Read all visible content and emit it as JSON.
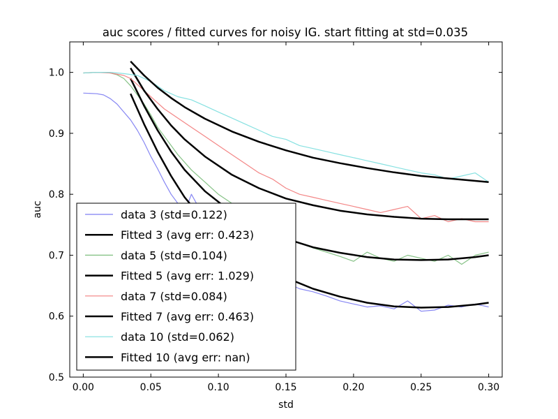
{
  "chart_data": {
    "type": "line",
    "title": "auc scores / fitted curves for noisy IG. start fitting at std=0.035",
    "xlabel": "std",
    "ylabel": "auc",
    "xlim": [
      -0.01,
      0.31
    ],
    "ylim": [
      0.5,
      1.05
    ],
    "x_ticks": [
      0.0,
      0.05,
      0.1,
      0.15,
      0.2,
      0.25,
      0.3
    ],
    "x_tick_labels": [
      "0.00",
      "0.05",
      "0.10",
      "0.15",
      "0.20",
      "0.25",
      "0.30"
    ],
    "y_ticks": [
      0.5,
      0.6,
      0.7,
      0.8,
      0.9,
      1.0
    ],
    "y_tick_labels": [
      "0.5",
      "0.6",
      "0.7",
      "0.8",
      "0.9",
      "1.0"
    ],
    "grid": false,
    "legend_position": "lower-left",
    "series": [
      {
        "name": "data 3 (std=0.122)",
        "kind": "data",
        "color": "#7f7ff2",
        "points": [
          [
            0.0,
            0.966
          ],
          [
            0.01,
            0.965
          ],
          [
            0.015,
            0.963
          ],
          [
            0.02,
            0.957
          ],
          [
            0.025,
            0.948
          ],
          [
            0.03,
            0.935
          ],
          [
            0.035,
            0.922
          ],
          [
            0.04,
            0.905
          ],
          [
            0.045,
            0.885
          ],
          [
            0.05,
            0.862
          ],
          [
            0.055,
            0.842
          ],
          [
            0.06,
            0.82
          ],
          [
            0.065,
            0.8
          ],
          [
            0.07,
            0.785
          ],
          [
            0.075,
            0.77
          ],
          [
            0.08,
            0.8
          ],
          [
            0.085,
            0.78
          ],
          [
            0.09,
            0.765
          ],
          [
            0.1,
            0.74
          ],
          [
            0.11,
            0.72
          ],
          [
            0.12,
            0.7
          ],
          [
            0.13,
            0.685
          ],
          [
            0.14,
            0.67
          ],
          [
            0.15,
            0.655
          ],
          [
            0.16,
            0.645
          ],
          [
            0.17,
            0.64
          ],
          [
            0.18,
            0.633
          ],
          [
            0.19,
            0.625
          ],
          [
            0.2,
            0.62
          ],
          [
            0.21,
            0.615
          ],
          [
            0.22,
            0.617
          ],
          [
            0.23,
            0.612
          ],
          [
            0.24,
            0.625
          ],
          [
            0.25,
            0.608
          ],
          [
            0.26,
            0.61
          ],
          [
            0.27,
            0.618
          ],
          [
            0.28,
            0.615
          ],
          [
            0.29,
            0.62
          ],
          [
            0.3,
            0.615
          ]
        ]
      },
      {
        "name": "Fitted 3 (avg err: 0.423)",
        "kind": "fit",
        "color": "#000000",
        "points": [
          [
            0.035,
            0.965
          ],
          [
            0.045,
            0.915
          ],
          [
            0.055,
            0.87
          ],
          [
            0.065,
            0.83
          ],
          [
            0.075,
            0.795
          ],
          [
            0.09,
            0.755
          ],
          [
            0.11,
            0.715
          ],
          [
            0.13,
            0.685
          ],
          [
            0.15,
            0.663
          ],
          [
            0.17,
            0.645
          ],
          [
            0.19,
            0.632
          ],
          [
            0.21,
            0.622
          ],
          [
            0.23,
            0.616
          ],
          [
            0.25,
            0.614
          ],
          [
            0.27,
            0.615
          ],
          [
            0.29,
            0.619
          ],
          [
            0.3,
            0.622
          ]
        ]
      },
      {
        "name": "data 5 (std=0.104)",
        "kind": "data",
        "color": "#7fbf7f",
        "points": [
          [
            0.0,
            0.999
          ],
          [
            0.01,
            1.0
          ],
          [
            0.015,
            1.0
          ],
          [
            0.02,
            0.999
          ],
          [
            0.025,
            0.996
          ],
          [
            0.03,
            0.99
          ],
          [
            0.035,
            0.978
          ],
          [
            0.04,
            0.963
          ],
          [
            0.045,
            0.948
          ],
          [
            0.05,
            0.93
          ],
          [
            0.055,
            0.91
          ],
          [
            0.06,
            0.895
          ],
          [
            0.065,
            0.88
          ],
          [
            0.07,
            0.865
          ],
          [
            0.08,
            0.84
          ],
          [
            0.09,
            0.82
          ],
          [
            0.1,
            0.8
          ],
          [
            0.11,
            0.785
          ],
          [
            0.12,
            0.77
          ],
          [
            0.13,
            0.755
          ],
          [
            0.14,
            0.745
          ],
          [
            0.15,
            0.73
          ],
          [
            0.16,
            0.72
          ],
          [
            0.17,
            0.712
          ],
          [
            0.18,
            0.705
          ],
          [
            0.19,
            0.698
          ],
          [
            0.2,
            0.69
          ],
          [
            0.21,
            0.705
          ],
          [
            0.22,
            0.695
          ],
          [
            0.23,
            0.69
          ],
          [
            0.24,
            0.7
          ],
          [
            0.25,
            0.695
          ],
          [
            0.26,
            0.69
          ],
          [
            0.27,
            0.7
          ],
          [
            0.28,
            0.685
          ],
          [
            0.29,
            0.7
          ],
          [
            0.3,
            0.705
          ]
        ]
      },
      {
        "name": "Fitted 5 (avg err: 1.029)",
        "kind": "fit",
        "color": "#000000",
        "points": [
          [
            0.035,
            0.99
          ],
          [
            0.045,
            0.945
          ],
          [
            0.055,
            0.905
          ],
          [
            0.065,
            0.87
          ],
          [
            0.075,
            0.84
          ],
          [
            0.09,
            0.805
          ],
          [
            0.11,
            0.77
          ],
          [
            0.13,
            0.745
          ],
          [
            0.15,
            0.727
          ],
          [
            0.17,
            0.713
          ],
          [
            0.19,
            0.704
          ],
          [
            0.21,
            0.697
          ],
          [
            0.23,
            0.693
          ],
          [
            0.25,
            0.692
          ],
          [
            0.27,
            0.693
          ],
          [
            0.29,
            0.697
          ],
          [
            0.3,
            0.7
          ]
        ]
      },
      {
        "name": "data 7 (std=0.084)",
        "kind": "data",
        "color": "#f27f7f",
        "points": [
          [
            0.0,
            0.999
          ],
          [
            0.01,
            1.0
          ],
          [
            0.02,
            0.999
          ],
          [
            0.03,
            0.995
          ],
          [
            0.035,
            0.99
          ],
          [
            0.04,
            0.98
          ],
          [
            0.05,
            0.96
          ],
          [
            0.055,
            0.95
          ],
          [
            0.06,
            0.94
          ],
          [
            0.07,
            0.925
          ],
          [
            0.08,
            0.91
          ],
          [
            0.09,
            0.895
          ],
          [
            0.1,
            0.88
          ],
          [
            0.11,
            0.865
          ],
          [
            0.12,
            0.85
          ],
          [
            0.13,
            0.835
          ],
          [
            0.14,
            0.825
          ],
          [
            0.15,
            0.81
          ],
          [
            0.16,
            0.8
          ],
          [
            0.17,
            0.795
          ],
          [
            0.18,
            0.79
          ],
          [
            0.19,
            0.785
          ],
          [
            0.2,
            0.78
          ],
          [
            0.21,
            0.775
          ],
          [
            0.22,
            0.77
          ],
          [
            0.23,
            0.775
          ],
          [
            0.24,
            0.78
          ],
          [
            0.25,
            0.76
          ],
          [
            0.26,
            0.765
          ],
          [
            0.27,
            0.755
          ],
          [
            0.28,
            0.76
          ],
          [
            0.29,
            0.755
          ],
          [
            0.3,
            0.755
          ]
        ]
      },
      {
        "name": "Fitted 7 (avg err: 0.463)",
        "kind": "fit",
        "color": "#000000",
        "points": [
          [
            0.035,
            1.007
          ],
          [
            0.045,
            0.97
          ],
          [
            0.055,
            0.94
          ],
          [
            0.065,
            0.913
          ],
          [
            0.075,
            0.89
          ],
          [
            0.09,
            0.862
          ],
          [
            0.11,
            0.832
          ],
          [
            0.13,
            0.81
          ],
          [
            0.15,
            0.793
          ],
          [
            0.17,
            0.782
          ],
          [
            0.19,
            0.773
          ],
          [
            0.21,
            0.767
          ],
          [
            0.23,
            0.763
          ],
          [
            0.25,
            0.76
          ],
          [
            0.27,
            0.759
          ],
          [
            0.29,
            0.759
          ],
          [
            0.3,
            0.759
          ]
        ]
      },
      {
        "name": "data 10 (std=0.062)",
        "kind": "data",
        "color": "#7fdfdf",
        "points": [
          [
            0.0,
            0.999
          ],
          [
            0.01,
            1.0
          ],
          [
            0.02,
            1.0
          ],
          [
            0.03,
            0.998
          ],
          [
            0.04,
            0.995
          ],
          [
            0.05,
            0.985
          ],
          [
            0.06,
            0.97
          ],
          [
            0.07,
            0.96
          ],
          [
            0.08,
            0.955
          ],
          [
            0.09,
            0.945
          ],
          [
            0.1,
            0.935
          ],
          [
            0.11,
            0.925
          ],
          [
            0.12,
            0.915
          ],
          [
            0.13,
            0.905
          ],
          [
            0.14,
            0.895
          ],
          [
            0.15,
            0.89
          ],
          [
            0.16,
            0.88
          ],
          [
            0.17,
            0.875
          ],
          [
            0.18,
            0.87
          ],
          [
            0.19,
            0.865
          ],
          [
            0.2,
            0.86
          ],
          [
            0.21,
            0.855
          ],
          [
            0.22,
            0.85
          ],
          [
            0.23,
            0.845
          ],
          [
            0.24,
            0.84
          ],
          [
            0.25,
            0.835
          ],
          [
            0.26,
            0.832
          ],
          [
            0.27,
            0.825
          ],
          [
            0.28,
            0.83
          ],
          [
            0.29,
            0.835
          ],
          [
            0.3,
            0.82
          ]
        ]
      },
      {
        "name": "Fitted 10 (avg err: nan)",
        "kind": "fit",
        "color": "#000000",
        "points": [
          [
            0.035,
            1.018
          ],
          [
            0.045,
            0.995
          ],
          [
            0.055,
            0.975
          ],
          [
            0.065,
            0.958
          ],
          [
            0.075,
            0.943
          ],
          [
            0.09,
            0.924
          ],
          [
            0.11,
            0.903
          ],
          [
            0.13,
            0.886
          ],
          [
            0.15,
            0.872
          ],
          [
            0.17,
            0.86
          ],
          [
            0.19,
            0.851
          ],
          [
            0.21,
            0.843
          ],
          [
            0.23,
            0.836
          ],
          [
            0.25,
            0.83
          ],
          [
            0.27,
            0.826
          ],
          [
            0.29,
            0.822
          ],
          [
            0.3,
            0.82
          ]
        ]
      }
    ]
  }
}
